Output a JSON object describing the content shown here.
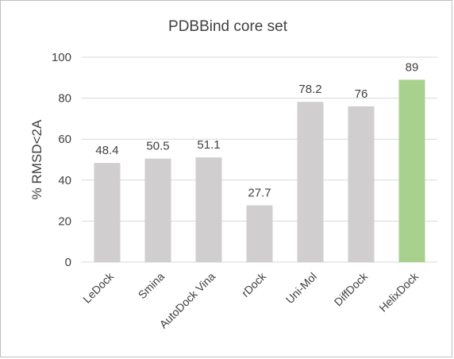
{
  "chart_data": {
    "type": "bar",
    "title": "PDBBind core set",
    "xlabel": "",
    "ylabel": "% RMSD<2A",
    "ylim": [
      0,
      100
    ],
    "yticks": [
      0,
      20,
      40,
      60,
      80,
      100
    ],
    "grid": true,
    "categories": [
      "LeDock",
      "Smina",
      "AutoDock Vina",
      "rDock",
      "Uni-Mol",
      "DiffDock",
      "HelixDock"
    ],
    "values": [
      48.4,
      50.5,
      51.1,
      27.7,
      78.2,
      76,
      89
    ],
    "data_labels": [
      "48.4",
      "50.5",
      "51.1",
      "27.7",
      "78.2",
      "76",
      "89"
    ],
    "colors": {
      "default_bar": "#d0cece",
      "highlight_bar": "#a9d18e",
      "gridline": "#d9d9d9",
      "text": "#404040"
    },
    "highlight_category": "HelixDock"
  }
}
